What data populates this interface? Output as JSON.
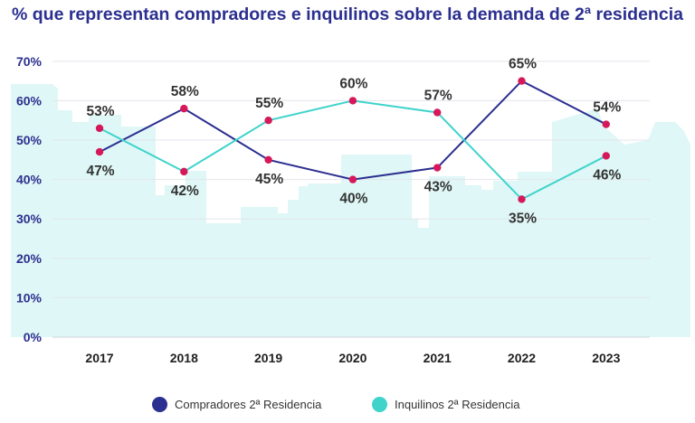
{
  "chart_data": {
    "type": "line",
    "title": "% que representan compradores e inquilinos sobre la demanda de 2ª residencia",
    "categories": [
      "2017",
      "2018",
      "2019",
      "2020",
      "2021",
      "2022",
      "2023"
    ],
    "ylim": [
      0,
      70
    ],
    "yticks": [
      "0%",
      "10%",
      "20%",
      "30%",
      "40%",
      "50%",
      "60%",
      "70%"
    ],
    "grid": true,
    "legend_position": "bottom",
    "series": [
      {
        "name": "Compradores 2ª Residencia",
        "color": "#2b2f8f",
        "values": [
          47,
          58,
          45,
          40,
          43,
          65,
          54
        ],
        "labels": [
          "47%",
          "58%",
          "45%",
          "40%",
          "43%",
          "65%",
          "54%"
        ]
      },
      {
        "name": "Inquilinos 2ª Residencia",
        "color": "#3fd3cc",
        "values": [
          53,
          42,
          55,
          60,
          57,
          35,
          46
        ],
        "labels": [
          "53%",
          "42%",
          "55%",
          "60%",
          "57%",
          "35%",
          "46%"
        ]
      }
    ],
    "marker_color": "#d6185a",
    "background_color": "#dff7f6"
  }
}
